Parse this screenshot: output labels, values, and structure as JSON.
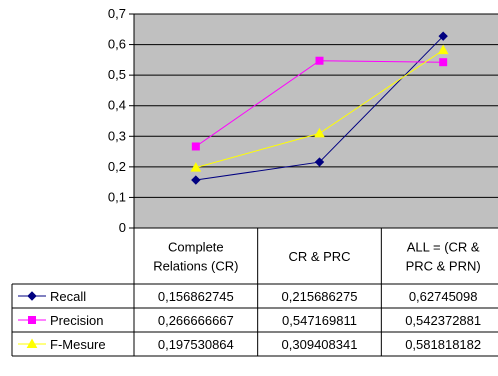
{
  "chart_data": {
    "type": "line",
    "title": "",
    "xlabel": "",
    "ylabel": "",
    "categories": [
      "Complete Relations (CR)",
      "CR & PRC",
      "ALL = (CR & PRC & PRN)"
    ],
    "category_lines": [
      [
        "Complete",
        "Relations (CR)"
      ],
      [
        "CR & PRC"
      ],
      [
        "ALL = (CR &",
        "PRC & PRN)"
      ]
    ],
    "ylim": [
      0,
      0.7
    ],
    "yticks": [
      "0",
      "0,1",
      "0,2",
      "0,3",
      "0,4",
      "0,5",
      "0,6",
      "0,7"
    ],
    "grid": true,
    "plot_background": "#c0c0c0",
    "series": [
      {
        "name": "Recall",
        "color": "#000080",
        "marker": "diamond",
        "values": [
          0.156862745,
          0.215686275,
          0.62745098
        ],
        "labels": [
          "0,156862745",
          "0,215686275",
          "0,62745098"
        ]
      },
      {
        "name": "Precision",
        "color": "#ff00ff",
        "marker": "square",
        "values": [
          0.266666667,
          0.547169811,
          0.542372881
        ],
        "labels": [
          "0,266666667",
          "0,547169811",
          "0,542372881"
        ]
      },
      {
        "name": "F-Mesure",
        "color": "#ffff00",
        "marker": "triangle",
        "values": [
          0.197530864,
          0.309408341,
          0.581818182
        ],
        "labels": [
          "0,197530864",
          "0,309408341",
          "0,581818182"
        ]
      }
    ]
  }
}
